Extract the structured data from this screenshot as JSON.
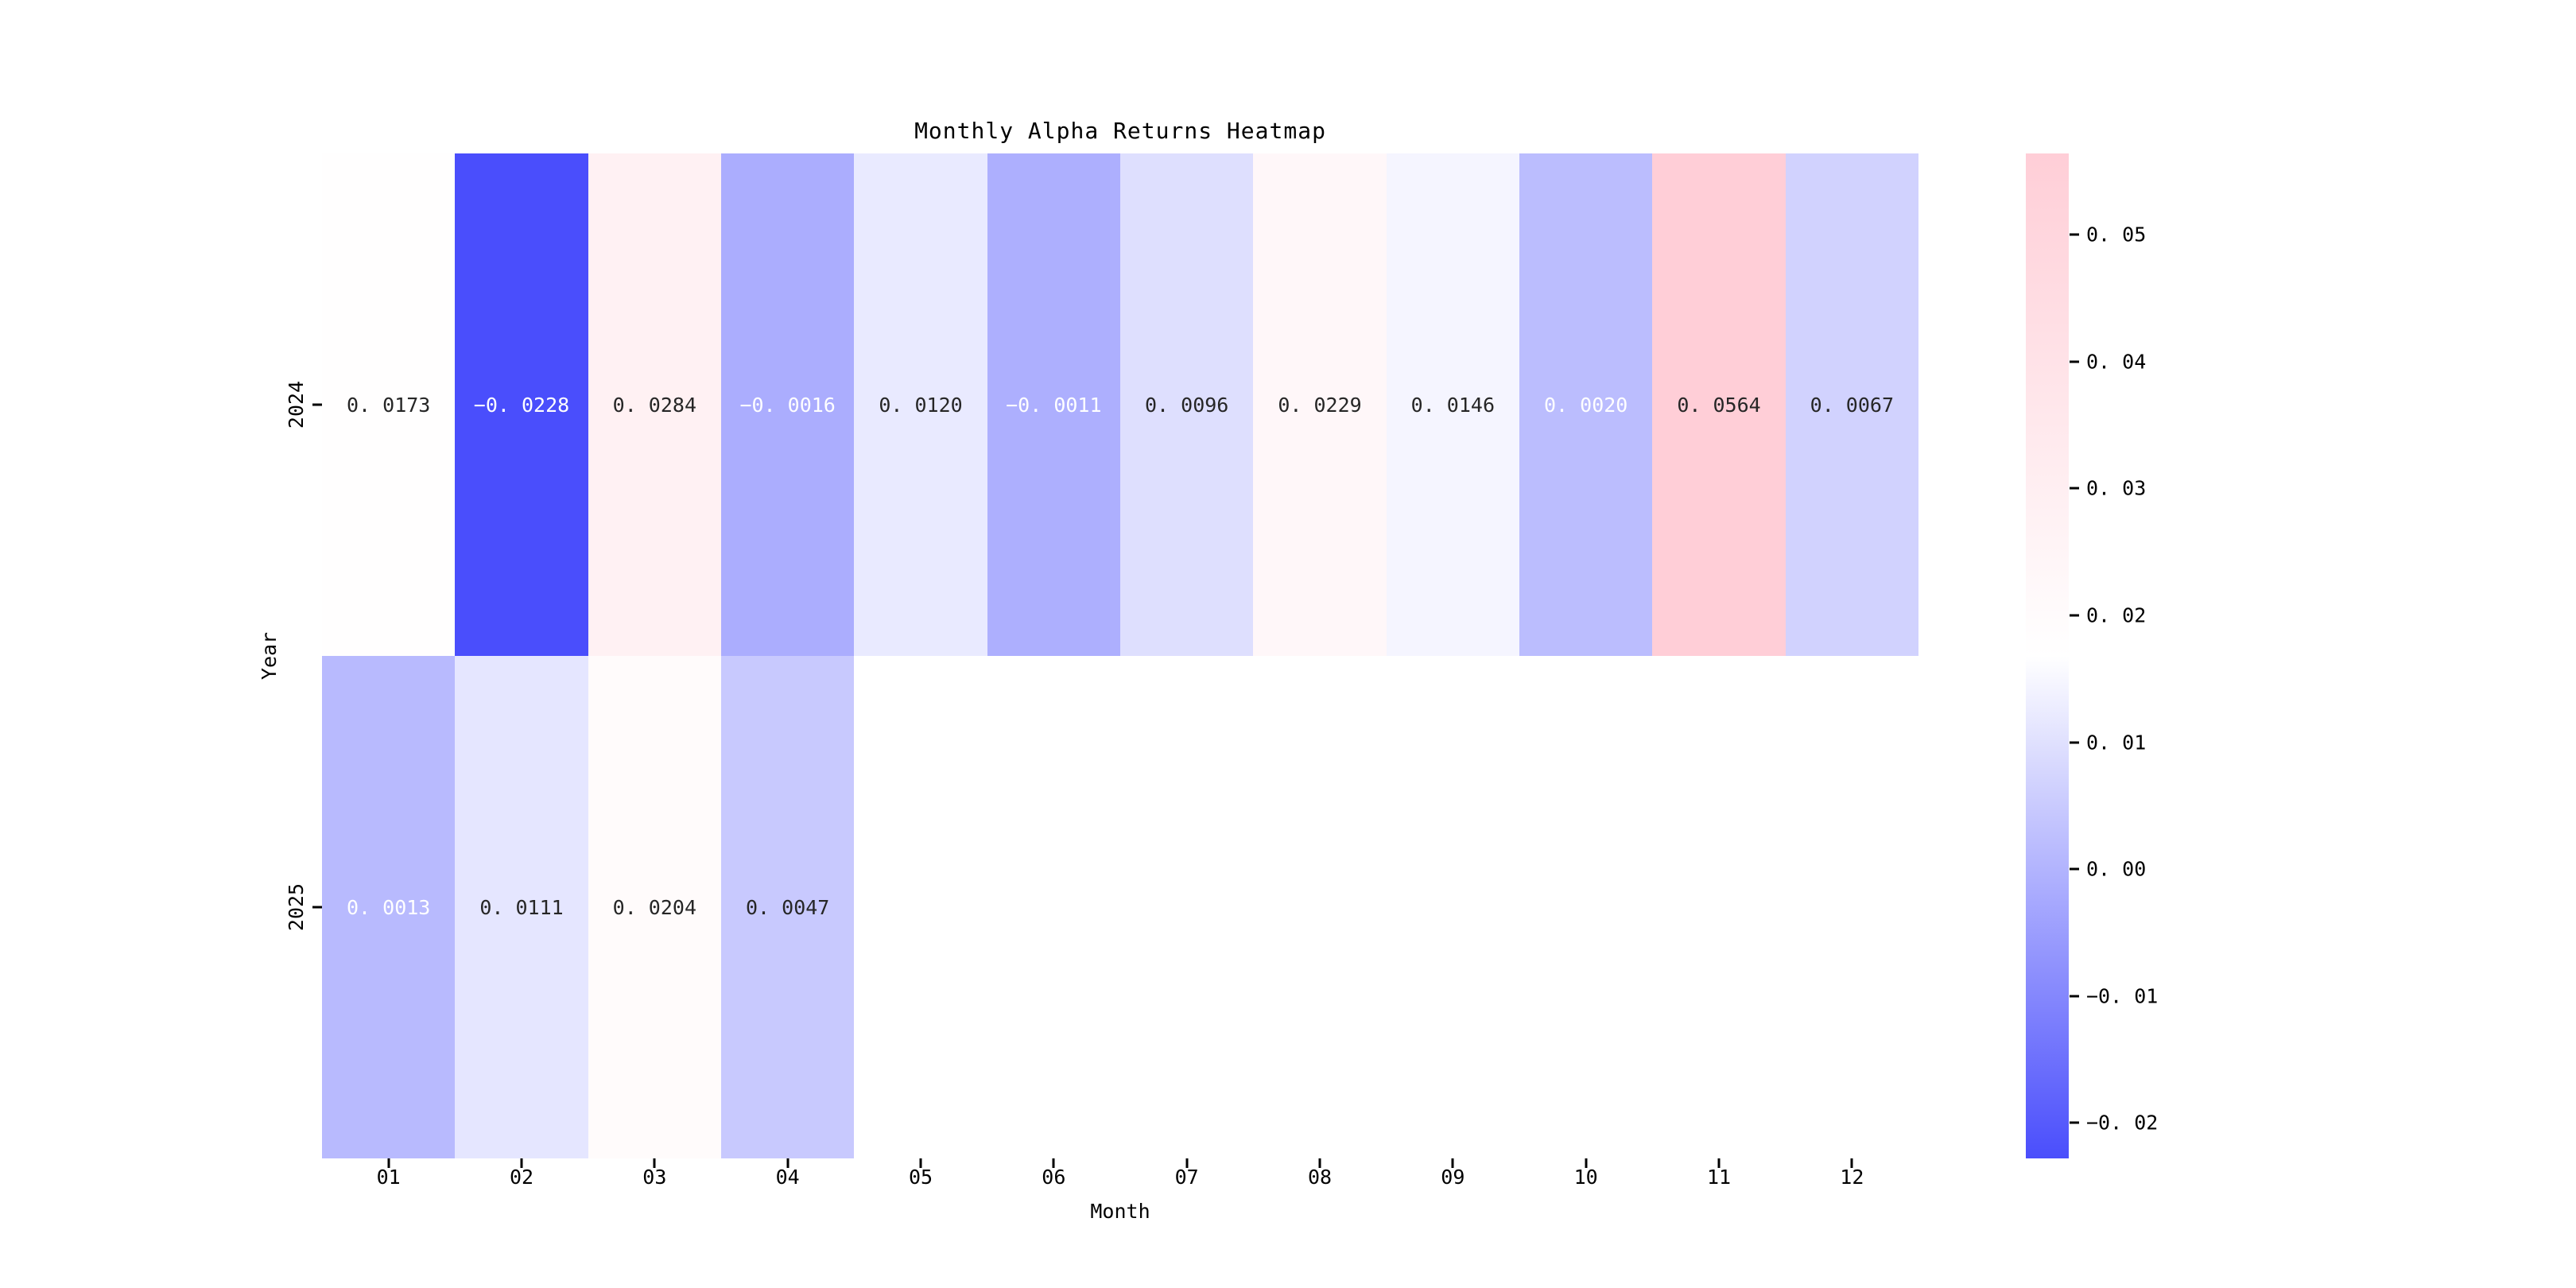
{
  "title": "Monthly Alpha Returns Heatmap",
  "chart_data": {
    "type": "heatmap",
    "title": "Monthly Alpha Returns Heatmap",
    "xlabel": "Month",
    "ylabel": "Year",
    "columns": [
      "01",
      "02",
      "03",
      "04",
      "05",
      "06",
      "07",
      "08",
      "09",
      "10",
      "11",
      "12"
    ],
    "rows": [
      "2024",
      "2025"
    ],
    "values": [
      [
        0.0173,
        -0.0228,
        0.0284,
        -0.0016,
        0.012,
        -0.0011,
        0.0096,
        0.0229,
        0.0146,
        0.002,
        0.0564,
        0.0067
      ],
      [
        0.0013,
        0.0111,
        0.0204,
        0.0047,
        null,
        null,
        null,
        null,
        null,
        null,
        null,
        null
      ]
    ],
    "vmin": -0.0228,
    "vmax": 0.0564,
    "colorbar_ticks": [
      0.05,
      0.04,
      0.03,
      0.02,
      0.01,
      0.0,
      -0.01,
      -0.02
    ],
    "colors": {
      "min_color": "#4A4EFC",
      "mid_color": "#FFFFFF",
      "max_color": "#FFCED7",
      "annot_dark": "#262626",
      "annot_light": "#FFFFFF",
      "axis_text": "#000000"
    },
    "annot_white_threshold": 0.002,
    "annot_decimals": 4,
    "grid": false,
    "legend_position": "right-colorbar"
  }
}
